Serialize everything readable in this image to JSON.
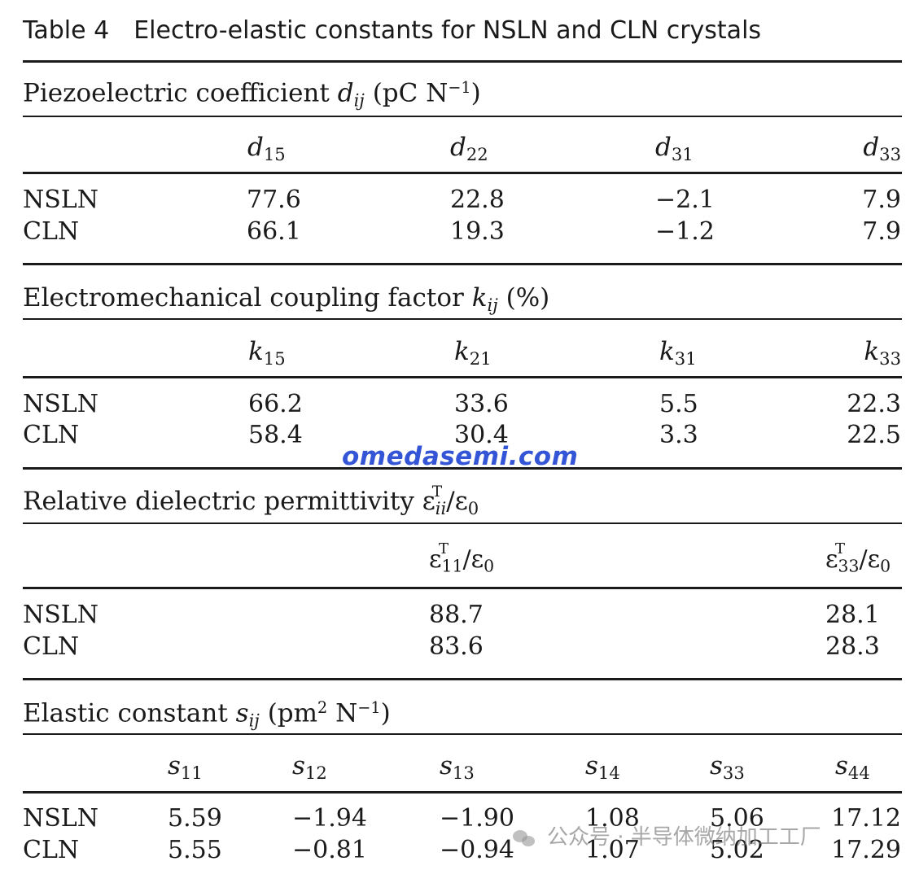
{
  "table": {
    "label": "Table 4",
    "caption": "Electro-elastic constants for NSLN and CLN crystals"
  },
  "sections": {
    "piezo": {
      "title_text": "Piezoelectric coefficient ",
      "symbol": "d",
      "symbol_sub": "ij",
      "unit": "(pC N",
      "unit_sup": "−1",
      "unit_close": ")",
      "headers": [
        {
          "sym": "d",
          "sub": "15"
        },
        {
          "sym": "d",
          "sub": "22"
        },
        {
          "sym": "d",
          "sub": "31"
        },
        {
          "sym": "d",
          "sub": "33"
        }
      ],
      "rows": [
        {
          "label": "NSLN",
          "values": [
            "77.6",
            "22.8",
            "−2.1",
            "7.9"
          ]
        },
        {
          "label": "CLN",
          "values": [
            "66.1",
            "19.3",
            "−1.2",
            "7.9"
          ]
        }
      ]
    },
    "coupling": {
      "title_text": "Electromechanical coupling factor ",
      "symbol": "k",
      "symbol_sub": "ij",
      "unit": " (%)",
      "headers": [
        {
          "sym": "k",
          "sub": "15"
        },
        {
          "sym": "k",
          "sub": "21"
        },
        {
          "sym": "k",
          "sub": "31"
        },
        {
          "sym": "k",
          "sub": "33"
        }
      ],
      "rows": [
        {
          "label": "NSLN",
          "values": [
            "66.2",
            "33.6",
            "5.5",
            "22.3"
          ]
        },
        {
          "label": "CLN",
          "values": [
            "58.4",
            "30.4",
            "3.3",
            "22.5"
          ]
        }
      ]
    },
    "dielectric": {
      "title_text": "Relative dielectric permittivity ",
      "symbol": "ε",
      "symbol_sup": "T",
      "symbol_sub": "ii",
      "ratio": "/ε",
      "ratio_sub": "0",
      "headers": [
        {
          "sym": "ε",
          "sup": "T",
          "sub": "11",
          "ratio": "/ε",
          "ratio_sub": "0"
        },
        {
          "sym": "ε",
          "sup": "T",
          "sub": "33",
          "ratio": "/ε",
          "ratio_sub": "0"
        }
      ],
      "rows": [
        {
          "label": "NSLN",
          "values": [
            "88.7",
            "28.1"
          ]
        },
        {
          "label": "CLN",
          "values": [
            "83.6",
            "28.3"
          ]
        }
      ]
    },
    "elastic": {
      "title_text": "Elastic constant ",
      "symbol": "s",
      "symbol_sub": "ij",
      "unit": " (pm",
      "unit_sup": "2",
      "unit_mid": " N",
      "unit_sup2": "−1",
      "unit_close": ")",
      "headers": [
        {
          "sym": "s",
          "sub": "11"
        },
        {
          "sym": "s",
          "sub": "12"
        },
        {
          "sym": "s",
          "sub": "13"
        },
        {
          "sym": "s",
          "sub": "14"
        },
        {
          "sym": "s",
          "sub": "33"
        },
        {
          "sym": "s",
          "sub": "44"
        }
      ],
      "rows": [
        {
          "label": "NSLN",
          "values": [
            "5.59",
            "−1.94",
            "−1.90",
            "1.08",
            "5.06",
            "17.12"
          ]
        },
        {
          "label": "CLN",
          "values": [
            "5.55",
            "−0.81",
            "−0.94",
            "1.07",
            "5.02",
            "17.29"
          ]
        }
      ]
    }
  },
  "watermarks": {
    "site": "omedasemi.com",
    "wechat": "公众号 · 半导体微纳加工工厂"
  }
}
